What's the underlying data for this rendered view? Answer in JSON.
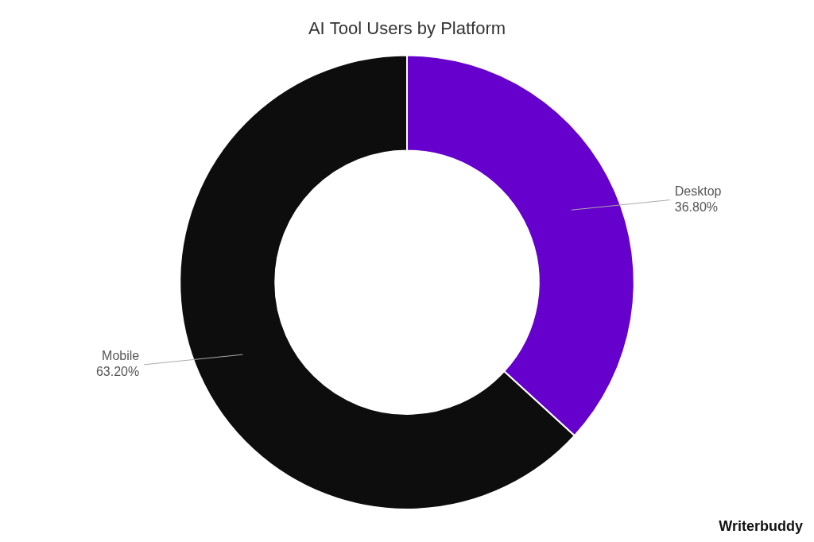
{
  "chart_data": {
    "type": "doughnut",
    "title": "AI Tool Users by Platform",
    "categories": [
      "Desktop",
      "Mobile"
    ],
    "values": [
      36.8,
      63.2
    ],
    "value_labels": [
      "36.80%",
      "63.20%"
    ],
    "data_labels": true,
    "colors": [
      "#6600CC",
      "#0d0d0d"
    ],
    "annotations": [
      "Writerbuddy"
    ]
  }
}
